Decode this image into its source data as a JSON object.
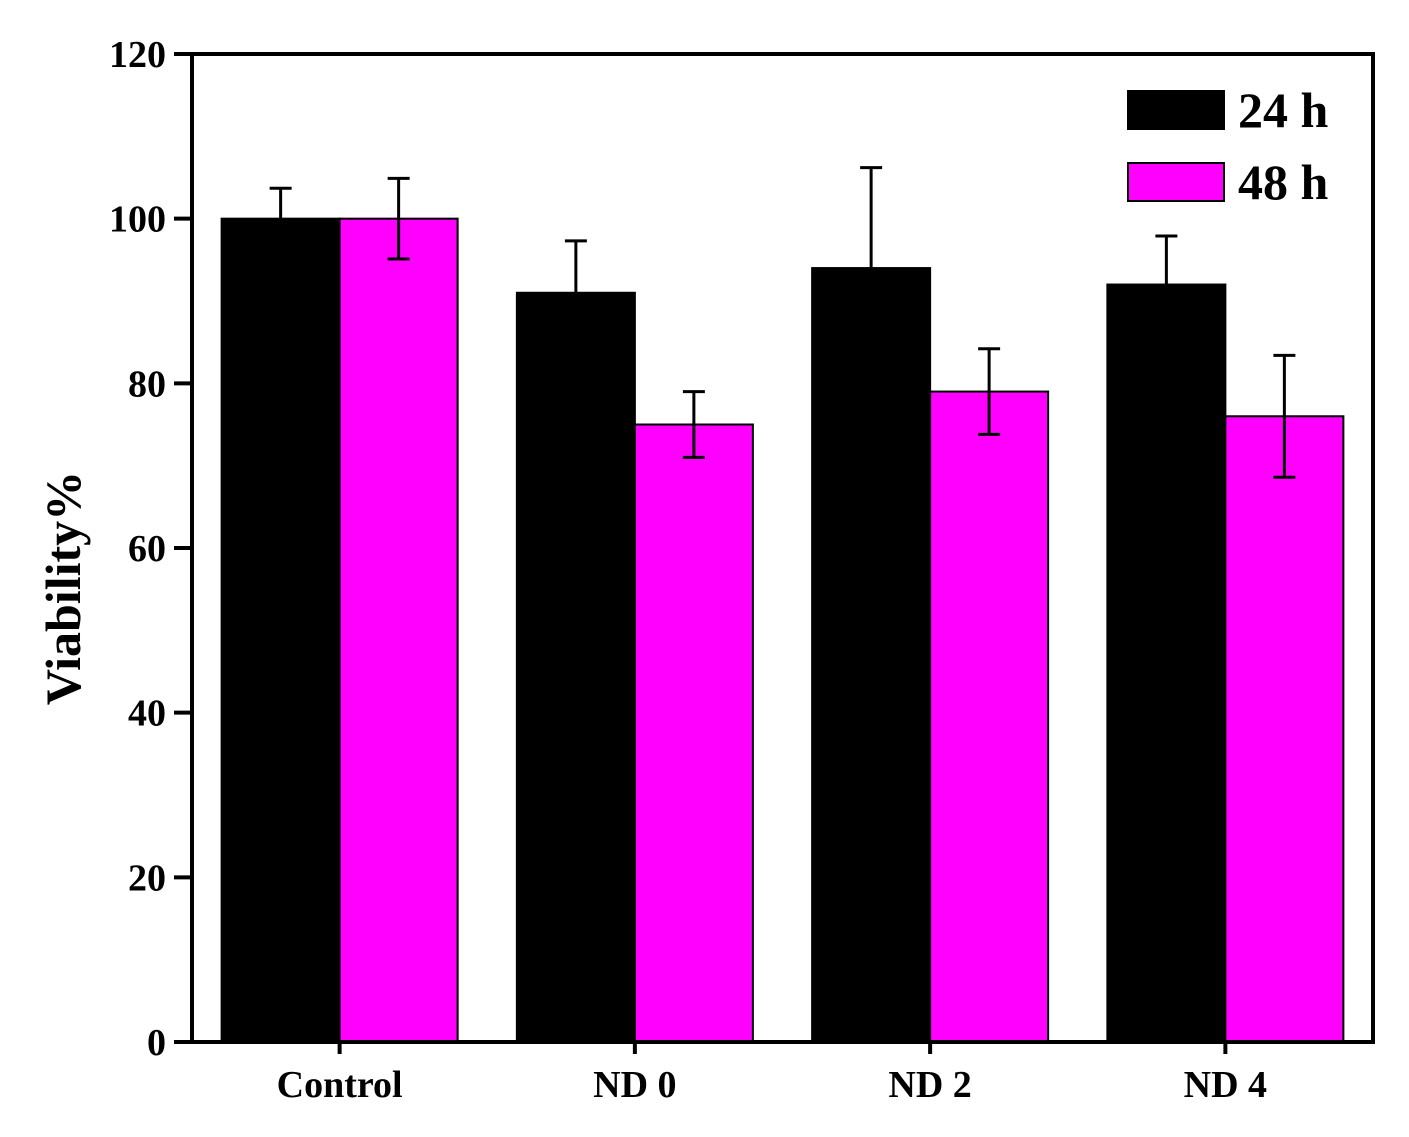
{
  "chart_data": {
    "type": "bar",
    "title": "",
    "xlabel": "",
    "ylabel": "Viability%",
    "ylim": [
      0,
      120
    ],
    "yticks": [
      "0",
      "20",
      "40",
      "60",
      "80",
      "100",
      "120"
    ],
    "categories": [
      "Control",
      "ND 0",
      "ND 2",
      "ND 4"
    ],
    "series": [
      {
        "name": "24 h",
        "color": "#000000",
        "values": [
          100,
          91,
          94,
          92
        ],
        "errors": [
          3.7,
          6.3,
          12.2,
          5.9
        ]
      },
      {
        "name": "48 h",
        "color": "#ff00ff",
        "values": [
          100,
          75,
          79,
          76
        ],
        "errors": [
          4.9,
          4.0,
          5.2,
          7.4
        ]
      }
    ],
    "legend_position": "top-right",
    "grid": false
  }
}
